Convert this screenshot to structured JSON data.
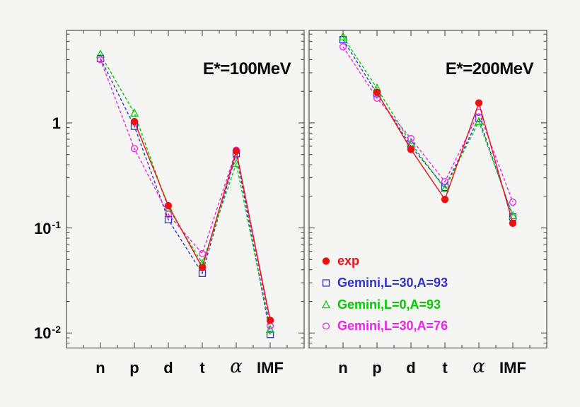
{
  "colors": {
    "background": "#f5f5f3",
    "frame": "#4d4d4d",
    "text": "#0b0b0b",
    "exp_red": "#ee1111",
    "gemini_blue": "#3333cc",
    "gemini_green": "#00cc00",
    "gemini_magenta": "#ee22ee"
  },
  "y_axis": {
    "scale": "log",
    "ticks": [
      {
        "label": "1",
        "sup": "",
        "value": 1
      },
      {
        "label": "10",
        "sup": "-1",
        "value": 0.1
      },
      {
        "label": "10",
        "sup": "-2",
        "value": 0.01
      }
    ]
  },
  "legend": {
    "items": [
      {
        "label": "exp",
        "color": "#ee1111",
        "marker": "filled-circle"
      },
      {
        "label": "Gemini,L=30,A=93",
        "color": "#3333cc",
        "marker": "open-square"
      },
      {
        "label": "Gemini,L=0,A=93",
        "color": "#00cc00",
        "marker": "open-triangle"
      },
      {
        "label": "Gemini,L=30,A=76",
        "color": "#ee22ee",
        "marker": "open-circle"
      }
    ]
  },
  "chart_data": [
    {
      "type": "line",
      "title": "E*=100MeV",
      "yscale": "log",
      "ylim": [
        0.0072,
        7.6
      ],
      "grid": false,
      "categories": [
        "n",
        "p",
        "d",
        "t",
        "α",
        "IMF"
      ],
      "series": [
        {
          "name": "exp",
          "color": "#ee1111",
          "line": "solid",
          "marker": "filled-circle",
          "values": [
            null,
            1.03,
            0.163,
            0.042,
            0.54,
            0.0132
          ]
        },
        {
          "name": "Gemini,L=30,A=93",
          "color": "#3333cc",
          "line": "dashed",
          "marker": "open-square",
          "values": [
            4.1,
            0.93,
            0.12,
            0.037,
            0.51,
            0.0097
          ]
        },
        {
          "name": "Gemini,L=0,A=93",
          "color": "#00cc00",
          "line": "dashed",
          "marker": "open-triangle",
          "values": [
            4.5,
            1.24,
            0.155,
            0.046,
            0.41,
            0.0108
          ]
        },
        {
          "name": "Gemini,L=30,A=76",
          "color": "#ee22ee",
          "line": "dashed",
          "marker": "open-circle",
          "values": [
            4.0,
            0.57,
            0.135,
            0.057,
            0.55,
            0.0117
          ]
        }
      ]
    },
    {
      "type": "line",
      "title": "E*=200MeV",
      "yscale": "log",
      "ylim": [
        0.0072,
        7.6
      ],
      "grid": false,
      "categories": [
        "n",
        "p",
        "d",
        "t",
        "α",
        "IMF"
      ],
      "series": [
        {
          "name": "exp",
          "color": "#ee1111",
          "line": "solid",
          "marker": "filled-circle",
          "values": [
            null,
            1.95,
            0.56,
            0.187,
            1.55,
            0.111
          ]
        },
        {
          "name": "Gemini,L=30,A=93",
          "color": "#3333cc",
          "line": "dashed",
          "marker": "open-square",
          "values": [
            6.2,
            1.9,
            0.6,
            0.244,
            1.11,
            0.127
          ]
        },
        {
          "name": "Gemini,L=0,A=93",
          "color": "#00cc00",
          "line": "dashed",
          "marker": "open-triangle",
          "values": [
            6.6,
            2.14,
            0.64,
            0.237,
            1.03,
            0.131
          ]
        },
        {
          "name": "Gemini,L=30,A=76",
          "color": "#ee22ee",
          "line": "dashed",
          "marker": "open-circle",
          "values": [
            5.3,
            1.72,
            0.71,
            0.276,
            1.26,
            0.176
          ]
        }
      ]
    }
  ]
}
